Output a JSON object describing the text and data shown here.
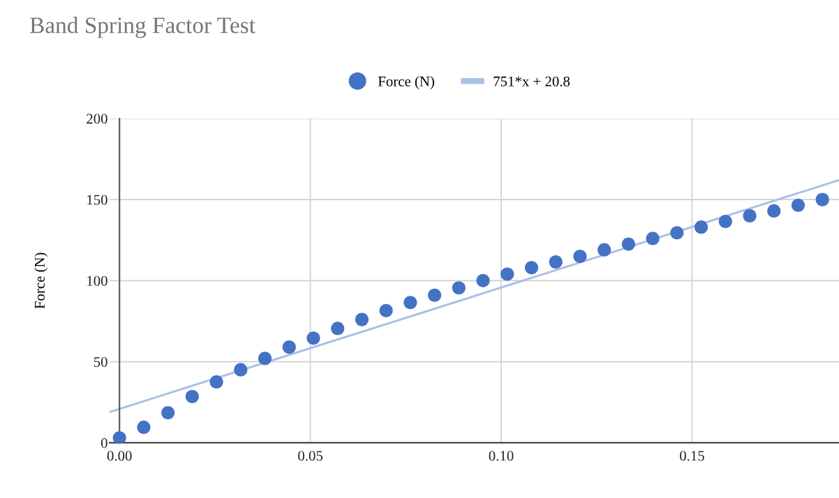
{
  "chart_data": {
    "type": "scatter",
    "title": "Band Spring Factor Test",
    "ylabel": "Force (N)",
    "xlim": [
      -0.0026,
      0.1885
    ],
    "xticks": [
      {
        "value": 0,
        "label": "0.00"
      },
      {
        "value": 0.05,
        "label": "0.05"
      },
      {
        "value": 0.1,
        "label": "0.10"
      },
      {
        "value": 0.15,
        "label": "0.15"
      }
    ],
    "ylim": [
      0,
      200
    ],
    "yticks": [
      0,
      50,
      100,
      150,
      200
    ],
    "grid": true,
    "legend": "top",
    "series": [
      {
        "name": "Force (N)",
        "marker": "circle",
        "color": "#4472c4",
        "x": [
          0,
          0.00635,
          0.0127,
          0.01905,
          0.0254,
          0.03175,
          0.0381,
          0.04445,
          0.0508,
          0.05715,
          0.0635,
          0.06985,
          0.0762,
          0.08255,
          0.0889,
          0.09525,
          0.1016,
          0.10795,
          0.1143,
          0.12065,
          0.127,
          0.13335,
          0.1397,
          0.14605,
          0.1524,
          0.15875,
          0.1651,
          0.17145,
          0.1778,
          0.18415
        ],
        "values": [
          3,
          9.5,
          18.5,
          28.5,
          37.5,
          45,
          52,
          59,
          64.5,
          70.5,
          76,
          81.5,
          86.5,
          91,
          95.5,
          100,
          104,
          108,
          111.5,
          115,
          119,
          122.5,
          126,
          129.5,
          133,
          136.5,
          140,
          143,
          146.5,
          150
        ]
      },
      {
        "name": "751*x + 20.8",
        "type": "line",
        "color": "#a9c0e8",
        "x": [
          -0.0025,
          0.1885
        ],
        "values": [
          19,
          162
        ]
      }
    ]
  }
}
